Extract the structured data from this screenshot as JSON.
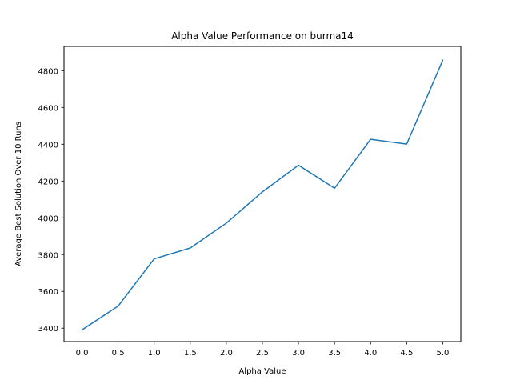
{
  "chart_data": {
    "type": "line",
    "title": "Alpha Value Performance on burma14",
    "xlabel": "Alpha Value",
    "ylabel": "Average Best Solution Over 10 Runs",
    "x": [
      0.0,
      0.5,
      1.0,
      1.5,
      2.0,
      2.5,
      3.0,
      3.5,
      4.0,
      4.5,
      5.0
    ],
    "x_tick_labels": [
      "0.0",
      "0.5",
      "1.0",
      "1.5",
      "2.0",
      "2.5",
      "3.0",
      "3.5",
      "4.0",
      "4.5",
      "5.0"
    ],
    "y_ticks": [
      3400,
      3600,
      3800,
      4000,
      4200,
      4400,
      4600,
      4800
    ],
    "y_tick_labels": [
      "3400",
      "3600",
      "3800",
      "4000",
      "4200",
      "4400",
      "4600",
      "4800"
    ],
    "xlim": [
      -0.25,
      5.25
    ],
    "ylim": [
      3327,
      4932
    ],
    "grid": false,
    "series": [
      {
        "color": "#1f77b4",
        "values": [
          3391,
          3520,
          3777,
          3836,
          3971,
          4141,
          4286,
          4161,
          4427,
          4401,
          4857
        ]
      }
    ]
  }
}
